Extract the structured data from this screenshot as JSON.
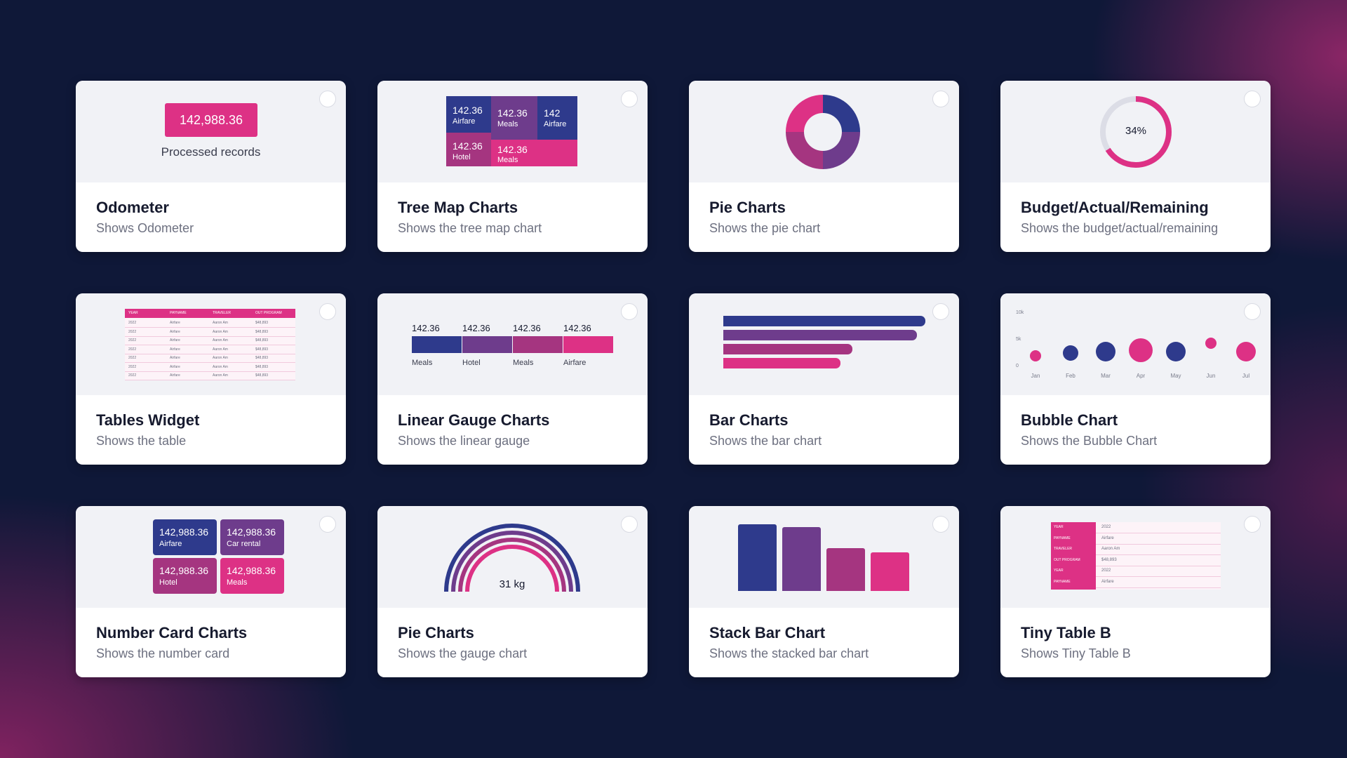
{
  "colors": {
    "navy": "#2e3a8c",
    "purple": "#6e3c8c",
    "magenta": "#a53580",
    "pink": "#dd3185"
  },
  "cards": {
    "odometer": {
      "title": "Odometer",
      "desc": "Shows Odometer",
      "value": "142,988.36",
      "caption": "Processed records"
    },
    "treemap": {
      "title": "Tree Map Charts",
      "desc": "Shows the tree map chart",
      "tiles": [
        {
          "value": "142.36",
          "label": "Airfare"
        },
        {
          "value": "142.36",
          "label": "Meals"
        },
        {
          "value": "142",
          "label": "Airfare"
        },
        {
          "value": "142.36",
          "label": "Hotel"
        },
        {
          "value": "142.36",
          "label": "Meals"
        }
      ]
    },
    "pie": {
      "title": "Pie Charts",
      "desc": "Shows the pie chart"
    },
    "budget": {
      "title": "Budget/Actual/Remaining",
      "desc": "Shows the budget/actual/remaining",
      "percent_label": "34%",
      "percent": 0.66
    },
    "tables": {
      "title": "Tables Widget",
      "desc": "Shows the table",
      "headers": [
        "YEAR",
        "PAYNAME",
        "TRAVELER",
        "OUT PROGRAM"
      ],
      "rows": [
        [
          "2022",
          "Airfare",
          "Aaron Am",
          "$48,893"
        ],
        [
          "2022",
          "Airfare",
          "Aaron Am",
          "$48,893"
        ],
        [
          "2022",
          "Airfare",
          "Aaron Am",
          "$48,893"
        ],
        [
          "2022",
          "Airfare",
          "Aaron Am",
          "$48,893"
        ],
        [
          "2022",
          "Airfare",
          "Aaron Am",
          "$48,893"
        ],
        [
          "2022",
          "Airfare",
          "Aaron Am",
          "$48,893"
        ],
        [
          "2022",
          "Airfare",
          "Aaron Am",
          "$48,893"
        ]
      ]
    },
    "linear": {
      "title": "Linear Gauge Charts",
      "desc": "Shows the linear gauge",
      "segments": [
        {
          "value": "142.36",
          "label": "Meals"
        },
        {
          "value": "142.36",
          "label": "Hotel"
        },
        {
          "value": "142.36",
          "label": "Meals"
        },
        {
          "value": "142.36",
          "label": "Airfare"
        }
      ]
    },
    "bar": {
      "title": "Bar Charts",
      "desc": "Shows the bar chart",
      "values": [
        100,
        96,
        64,
        58
      ]
    },
    "bubble": {
      "title": "Bubble Chart",
      "desc": "Shows the Bubble Chart"
    },
    "number": {
      "title": "Number Card Charts",
      "desc": "Shows the number card",
      "tiles": [
        {
          "value": "142,988.36",
          "label": "Airfare"
        },
        {
          "value": "142,988.36",
          "label": "Car rental"
        },
        {
          "value": "142,988.36",
          "label": "Hotel"
        },
        {
          "value": "142,988.36",
          "label": "Meals"
        }
      ]
    },
    "gauge": {
      "title": "Pie Charts",
      "desc": "Shows the gauge chart",
      "value_label": "31 kg"
    },
    "stack": {
      "title": "Stack Bar Chart",
      "desc": "Shows the stacked bar chart",
      "values": [
        100,
        96,
        64,
        58
      ]
    },
    "tiny": {
      "title": "Tiny Table B",
      "desc": "Shows Tiny Table B",
      "rows": [
        {
          "key": "YEAR",
          "val": "2022"
        },
        {
          "key": "PAYNAME",
          "val": "Airfare"
        },
        {
          "key": "TRAVELER",
          "val": "Aaron Am"
        },
        {
          "key": "OUT PROGRAM",
          "val": "$48,893"
        },
        {
          "key": "YEAR",
          "val": "2022"
        },
        {
          "key": "PAYNAME",
          "val": "Airfare"
        }
      ]
    }
  },
  "chart_data": {
    "type": "scatter",
    "title": "",
    "categories": [
      "Jan",
      "Feb",
      "Mar",
      "Apr",
      "May",
      "Jun",
      "Jul"
    ],
    "y_ticks": [
      "10k",
      "5k",
      "0"
    ],
    "ylim": [
      0,
      10000
    ],
    "values": [
      1500,
      2000,
      2200,
      2500,
      2200,
      3800,
      2200
    ],
    "sizes": [
      1,
      2,
      3,
      4,
      3,
      1,
      3
    ],
    "series_colors": [
      "#dd3185",
      "#2e3a8c",
      "#2e3a8c",
      "#dd3185",
      "#2e3a8c",
      "#dd3185",
      "#dd3185"
    ]
  }
}
